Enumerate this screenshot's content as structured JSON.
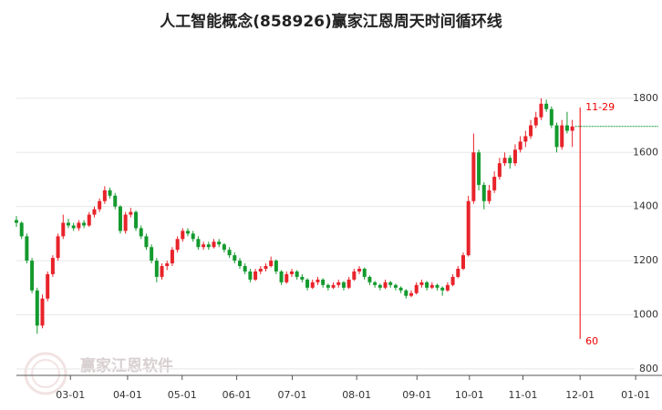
{
  "chart_data": {
    "type": "candlestick",
    "title": "人工智能概念(858926)赢家江恩周天时间循环线",
    "watermark": "赢家江恩软件",
    "ylim": [
      776,
      2000
    ],
    "yticks": [
      800,
      1000,
      1200,
      1400,
      1600,
      1800
    ],
    "xlim": [
      0,
      119
    ],
    "xticks": [
      {
        "value": 10.4,
        "label": "03-01"
      },
      {
        "value": 21.4,
        "label": "04-01"
      },
      {
        "value": 31.9,
        "label": "05-01"
      },
      {
        "value": 42.4,
        "label": "06-01"
      },
      {
        "value": 53.1,
        "label": "07-01"
      },
      {
        "value": 65.5,
        "label": "08-01"
      },
      {
        "value": 77.1,
        "label": "09-01"
      },
      {
        "value": 87.2,
        "label": "10-01"
      },
      {
        "value": 97.5,
        "label": "11-01"
      },
      {
        "value": 108.5,
        "label": "12-01"
      },
      {
        "value": 119.2,
        "label": "01-01"
      }
    ],
    "grid": true,
    "up_color": "#e8232a",
    "down_color": "#149a2e",
    "annotations": [
      {
        "text": "11-29",
        "x": 108.5
      },
      {
        "text": "60",
        "x": 108.5
      }
    ],
    "ohlc": [
      [
        1350,
        1365,
        1325,
        1340
      ],
      [
        1340,
        1345,
        1280,
        1290
      ],
      [
        1290,
        1300,
        1190,
        1200
      ],
      [
        1200,
        1210,
        1080,
        1090
      ],
      [
        1090,
        1100,
        930,
        960
      ],
      [
        960,
        1075,
        950,
        1060
      ],
      [
        1060,
        1160,
        1050,
        1150
      ],
      [
        1150,
        1220,
        1140,
        1210
      ],
      [
        1210,
        1300,
        1200,
        1290
      ],
      [
        1290,
        1370,
        1280,
        1340
      ],
      [
        1340,
        1355,
        1320,
        1330
      ],
      [
        1330,
        1340,
        1310,
        1320
      ],
      [
        1320,
        1350,
        1310,
        1340
      ],
      [
        1340,
        1350,
        1320,
        1330
      ],
      [
        1330,
        1380,
        1325,
        1370
      ],
      [
        1370,
        1400,
        1360,
        1390
      ],
      [
        1390,
        1430,
        1380,
        1420
      ],
      [
        1420,
        1475,
        1410,
        1460
      ],
      [
        1460,
        1470,
        1430,
        1440
      ],
      [
        1440,
        1450,
        1390,
        1400
      ],
      [
        1400,
        1405,
        1300,
        1310
      ],
      [
        1310,
        1380,
        1300,
        1370
      ],
      [
        1370,
        1395,
        1360,
        1380
      ],
      [
        1380,
        1385,
        1310,
        1320
      ],
      [
        1320,
        1330,
        1280,
        1290
      ],
      [
        1290,
        1300,
        1240,
        1250
      ],
      [
        1250,
        1260,
        1190,
        1200
      ],
      [
        1200,
        1210,
        1120,
        1140
      ],
      [
        1140,
        1190,
        1130,
        1180
      ],
      [
        1180,
        1200,
        1165,
        1190
      ],
      [
        1190,
        1250,
        1180,
        1240
      ],
      [
        1240,
        1290,
        1230,
        1280
      ],
      [
        1280,
        1320,
        1270,
        1310
      ],
      [
        1310,
        1320,
        1290,
        1300
      ],
      [
        1300,
        1310,
        1270,
        1280
      ],
      [
        1280,
        1290,
        1240,
        1250
      ],
      [
        1250,
        1270,
        1240,
        1260
      ],
      [
        1260,
        1270,
        1240,
        1250
      ],
      [
        1250,
        1280,
        1245,
        1270
      ],
      [
        1270,
        1280,
        1250,
        1260
      ],
      [
        1260,
        1265,
        1230,
        1240
      ],
      [
        1240,
        1250,
        1210,
        1220
      ],
      [
        1220,
        1230,
        1190,
        1200
      ],
      [
        1200,
        1210,
        1170,
        1180
      ],
      [
        1180,
        1190,
        1150,
        1160
      ],
      [
        1160,
        1170,
        1120,
        1130
      ],
      [
        1130,
        1170,
        1125,
        1160
      ],
      [
        1160,
        1180,
        1150,
        1170
      ],
      [
        1170,
        1190,
        1160,
        1180
      ],
      [
        1180,
        1215,
        1175,
        1200
      ],
      [
        1200,
        1205,
        1150,
        1160
      ],
      [
        1160,
        1165,
        1110,
        1120
      ],
      [
        1120,
        1160,
        1115,
        1150
      ],
      [
        1150,
        1170,
        1140,
        1160
      ],
      [
        1160,
        1165,
        1130,
        1140
      ],
      [
        1140,
        1150,
        1120,
        1130
      ],
      [
        1130,
        1135,
        1090,
        1100
      ],
      [
        1100,
        1130,
        1095,
        1120
      ],
      [
        1120,
        1140,
        1110,
        1130
      ],
      [
        1130,
        1135,
        1100,
        1110
      ],
      [
        1110,
        1115,
        1090,
        1100
      ],
      [
        1100,
        1120,
        1095,
        1110
      ],
      [
        1110,
        1130,
        1100,
        1120
      ],
      [
        1120,
        1125,
        1090,
        1100
      ],
      [
        1100,
        1140,
        1095,
        1130
      ],
      [
        1130,
        1170,
        1125,
        1160
      ],
      [
        1160,
        1180,
        1150,
        1170
      ],
      [
        1170,
        1175,
        1130,
        1140
      ],
      [
        1140,
        1145,
        1110,
        1120
      ],
      [
        1120,
        1125,
        1100,
        1110
      ],
      [
        1110,
        1115,
        1090,
        1100
      ],
      [
        1100,
        1130,
        1095,
        1120
      ],
      [
        1120,
        1125,
        1100,
        1110
      ],
      [
        1110,
        1115,
        1090,
        1100
      ],
      [
        1100,
        1105,
        1080,
        1090
      ],
      [
        1090,
        1095,
        1060,
        1070
      ],
      [
        1070,
        1090,
        1065,
        1080
      ],
      [
        1080,
        1120,
        1075,
        1110
      ],
      [
        1110,
        1130,
        1100,
        1120
      ],
      [
        1120,
        1125,
        1090,
        1100
      ],
      [
        1100,
        1120,
        1095,
        1110
      ],
      [
        1110,
        1115,
        1090,
        1100
      ],
      [
        1100,
        1105,
        1070,
        1090
      ],
      [
        1090,
        1120,
        1085,
        1110
      ],
      [
        1110,
        1150,
        1105,
        1140
      ],
      [
        1140,
        1180,
        1135,
        1170
      ],
      [
        1170,
        1230,
        1165,
        1220
      ],
      [
        1220,
        1440,
        1215,
        1420
      ],
      [
        1420,
        1670,
        1410,
        1600
      ],
      [
        1600,
        1610,
        1460,
        1480
      ],
      [
        1480,
        1490,
        1390,
        1420
      ],
      [
        1420,
        1480,
        1410,
        1460
      ],
      [
        1460,
        1530,
        1450,
        1510
      ],
      [
        1510,
        1580,
        1500,
        1560
      ],
      [
        1560,
        1600,
        1550,
        1580
      ],
      [
        1580,
        1590,
        1540,
        1560
      ],
      [
        1560,
        1630,
        1550,
        1610
      ],
      [
        1610,
        1660,
        1600,
        1640
      ],
      [
        1640,
        1680,
        1620,
        1660
      ],
      [
        1660,
        1720,
        1650,
        1700
      ],
      [
        1700,
        1750,
        1690,
        1730
      ],
      [
        1730,
        1800,
        1720,
        1780
      ],
      [
        1780,
        1795,
        1750,
        1760
      ],
      [
        1760,
        1770,
        1690,
        1700
      ],
      [
        1700,
        1710,
        1600,
        1620
      ],
      [
        1620,
        1720,
        1610,
        1700
      ],
      [
        1700,
        1750,
        1670,
        1680
      ],
      [
        1680,
        1720,
        1620,
        1696
      ]
    ]
  }
}
